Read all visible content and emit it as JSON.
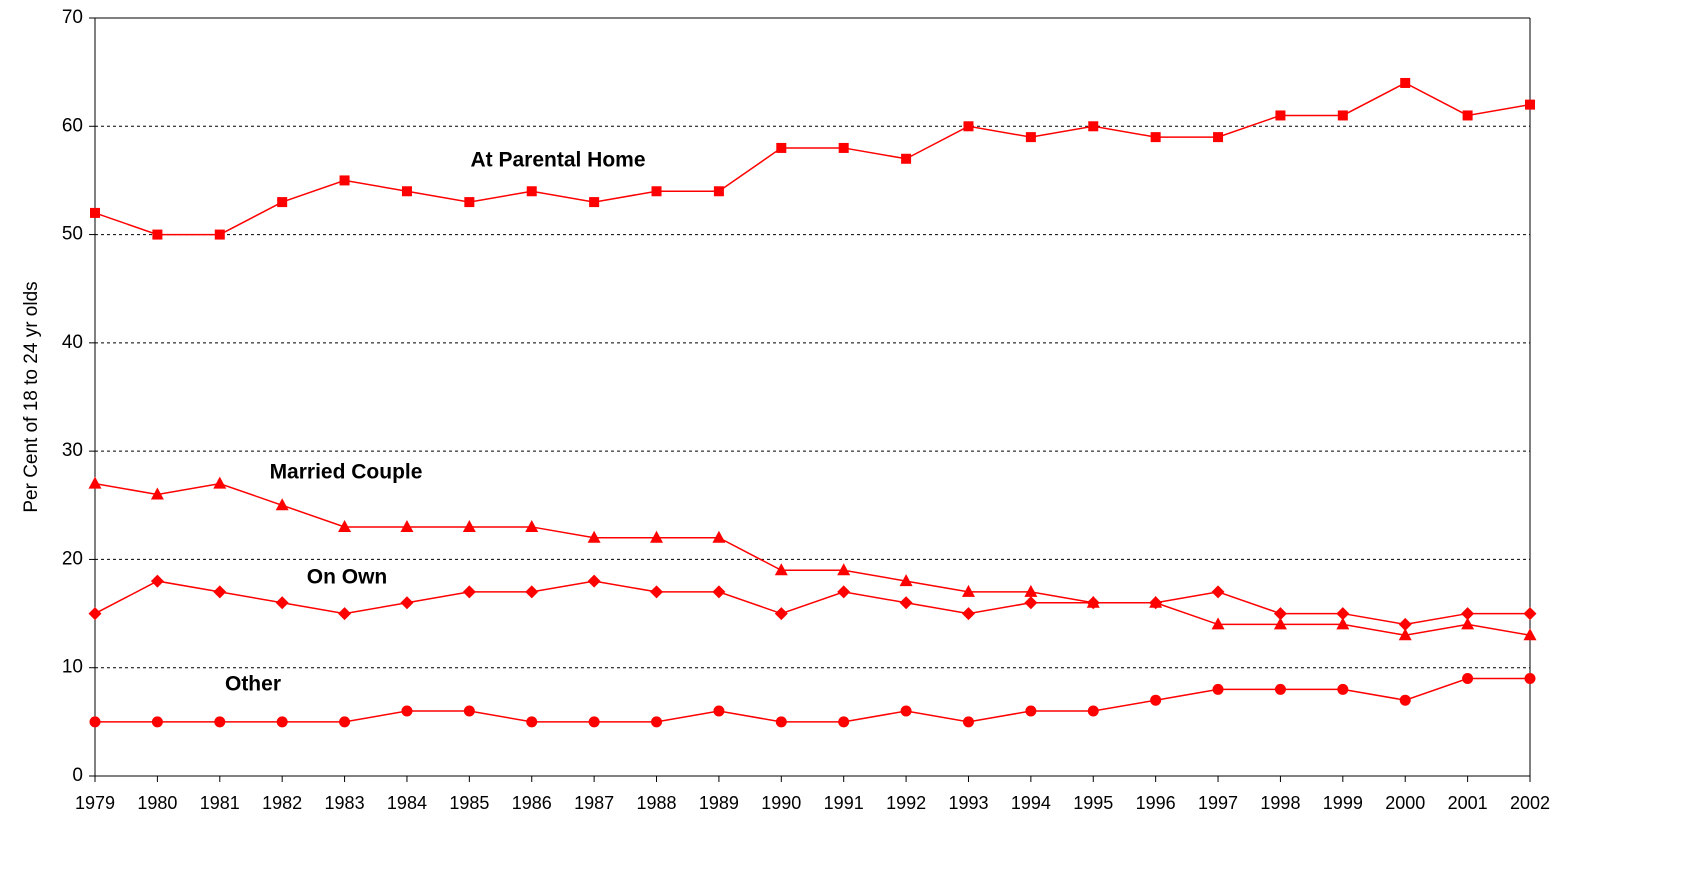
{
  "chart_data": {
    "type": "line",
    "ylabel": "Per Cent of 18 to 24 yr olds",
    "categories": [
      "1979",
      "1980",
      "1981",
      "1982",
      "1983",
      "1984",
      "1985",
      "1986",
      "1987",
      "1988",
      "1989",
      "1990",
      "1991",
      "1992",
      "1993",
      "1994",
      "1995",
      "1996",
      "1997",
      "1998",
      "1999",
      "2000",
      "2001",
      "2002"
    ],
    "series": [
      {
        "name": "At Parental Home",
        "color": "#ff0000",
        "marker": "square",
        "values": [
          52,
          50,
          50,
          53,
          55,
          54,
          53,
          54,
          53,
          54,
          54,
          58,
          58,
          57,
          60,
          59,
          60,
          59,
          59,
          61,
          61,
          64,
          61,
          62
        ]
      },
      {
        "name": "Married Couple",
        "color": "#ff0000",
        "marker": "triangle",
        "values": [
          27,
          26,
          27,
          25,
          23,
          23,
          23,
          23,
          22,
          22,
          22,
          19,
          19,
          18,
          17,
          17,
          16,
          16,
          14,
          14,
          14,
          13,
          14,
          13
        ]
      },
      {
        "name": "On Own",
        "color": "#ff0000",
        "marker": "diamond",
        "values": [
          15,
          18,
          17,
          16,
          15,
          16,
          17,
          17,
          18,
          17,
          17,
          15,
          17,
          16,
          15,
          16,
          16,
          16,
          17,
          15,
          15,
          14,
          15,
          15
        ]
      },
      {
        "name": "Other",
        "color": "#ff0000",
        "marker": "circle",
        "values": [
          5,
          5,
          5,
          5,
          5,
          6,
          6,
          5,
          5,
          5,
          6,
          5,
          5,
          6,
          5,
          6,
          6,
          7,
          8,
          8,
          8,
          7,
          9,
          9
        ]
      }
    ],
    "ylim": [
      0,
      70
    ],
    "yticks": [
      0,
      10,
      20,
      30,
      40,
      50,
      60,
      70
    ],
    "grid": true
  }
}
